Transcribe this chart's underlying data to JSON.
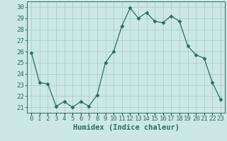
{
  "x": [
    0,
    1,
    2,
    3,
    4,
    5,
    6,
    7,
    8,
    9,
    10,
    11,
    12,
    13,
    14,
    15,
    16,
    17,
    18,
    19,
    20,
    21,
    22,
    23
  ],
  "y": [
    25.9,
    23.2,
    23.1,
    21.1,
    21.5,
    21.0,
    21.5,
    21.1,
    22.1,
    25.0,
    26.0,
    28.3,
    29.9,
    29.0,
    29.5,
    28.7,
    28.6,
    29.2,
    28.7,
    26.5,
    25.7,
    25.4,
    23.2,
    21.7
  ],
  "xlabel": "Humidex (Indice chaleur)",
  "ylim": [
    20.5,
    30.5
  ],
  "xlim": [
    -0.5,
    23.5
  ],
  "yticks": [
    21,
    22,
    23,
    24,
    25,
    26,
    27,
    28,
    29,
    30
  ],
  "xtick_labels": [
    "0",
    "1",
    "2",
    "3",
    "4",
    "5",
    "6",
    "7",
    "8",
    "9",
    "10",
    "11",
    "12",
    "13",
    "14",
    "15",
    "16",
    "17",
    "18",
    "19",
    "20",
    "21",
    "22",
    "23"
  ],
  "line_color": "#2d6b5e",
  "marker": "D",
  "marker_size": 2.5,
  "bg_color": "#cce8e4",
  "grid_color": "#aacfcb",
  "axis_fontsize": 7.5,
  "tick_fontsize": 6.5
}
